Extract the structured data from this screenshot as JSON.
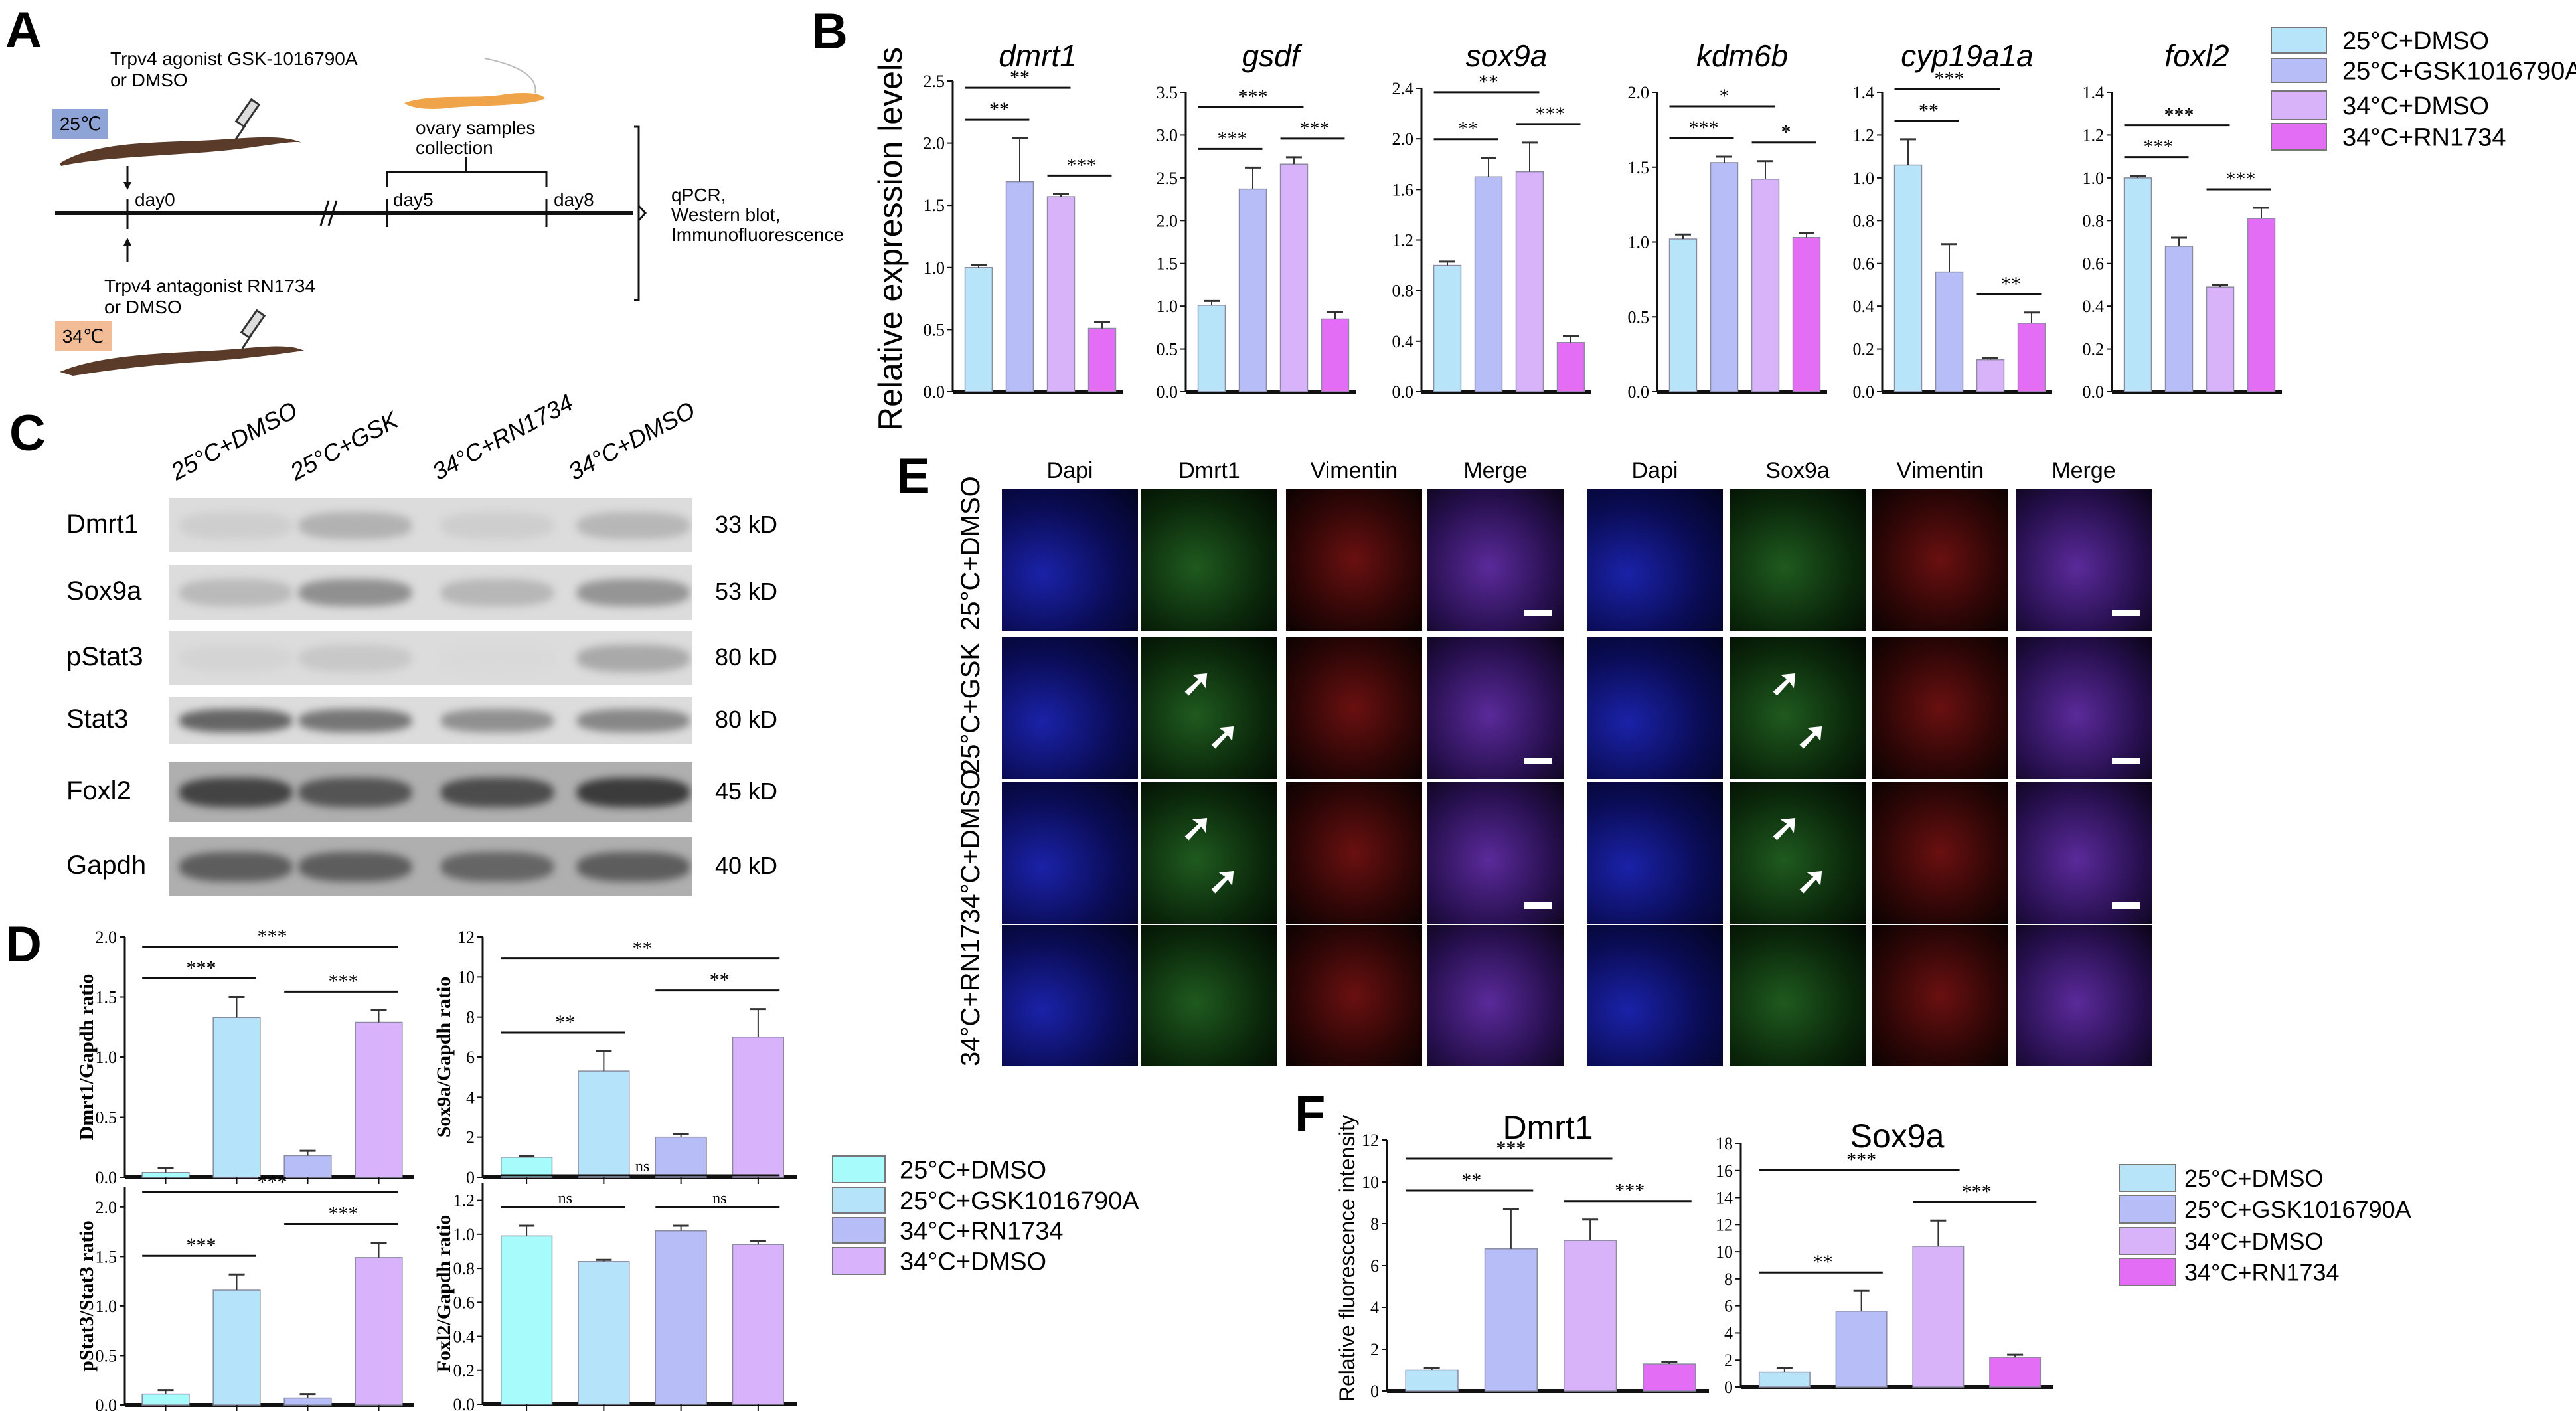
{
  "panels": {
    "a": "A",
    "b": "B",
    "c": "C",
    "d": "D",
    "e": "E",
    "f": "F"
  },
  "panel_a": {
    "agonist_line1": "Trpv4 agonist GSK-1016790A",
    "agonist_line2": "or DMSO",
    "temp_low": "25℃",
    "antagonist_line1": "Trpv4 antagonist RN1734",
    "antagonist_line2": "or DMSO",
    "temp_high": "34℃",
    "day0": "day0",
    "day5": "day5",
    "day8": "day8",
    "collection_line1": "ovary samples",
    "collection_line2": "collection",
    "assay_line1": "qPCR,",
    "assay_line2": "Western blot,",
    "assay_line3": "Immunofluorescence",
    "colors": {
      "low": "#8ea3d6",
      "high": "#f2bc96",
      "eel": "#5a3a28",
      "ovary": "#f0a44a"
    }
  },
  "panel_b": {
    "ylabel": "Relative expression levels",
    "legend": [
      {
        "label": "25°C+DMSO",
        "color": "#b8e4f9"
      },
      {
        "label": "25°C+GSK1016790A",
        "color": "#b6bdf7"
      },
      {
        "label": "34°C+DMSO",
        "color": "#d9b3fa"
      },
      {
        "label": "34°C+RN1734",
        "color": "#e36df5"
      }
    ]
  },
  "panel_c": {
    "lanes": [
      "25°C+DMSO",
      "25°C+GSK",
      "34°C+RN1734",
      "34°C+DMSO"
    ],
    "rows": [
      {
        "protein": "Dmrt1",
        "kd": "33 kD",
        "intensity": [
          0.08,
          0.25,
          0.08,
          0.22
        ]
      },
      {
        "protein": "Sox9a",
        "kd": "53 kD",
        "intensity": [
          0.2,
          0.45,
          0.22,
          0.42
        ]
      },
      {
        "protein": "pStat3",
        "kd": "80 kD",
        "intensity": [
          0.05,
          0.12,
          0.02,
          0.3
        ]
      },
      {
        "protein": "Stat3",
        "kd": "80 kD",
        "intensity": [
          0.7,
          0.6,
          0.45,
          0.5
        ]
      },
      {
        "protein": "Foxl2",
        "kd": "45 kD",
        "intensity": [
          0.9,
          0.8,
          0.85,
          0.95
        ]
      },
      {
        "protein": "Gapdh",
        "kd": "40 kD",
        "intensity": [
          0.75,
          0.75,
          0.7,
          0.75
        ]
      }
    ]
  },
  "panel_d": {
    "legend": [
      {
        "label": "25°C+DMSO",
        "color": "#a8fbfb"
      },
      {
        "label": "25°C+GSK1016790A",
        "color": "#b5e3fa"
      },
      {
        "label": "34°C+RN1734",
        "color": "#b6bdf7"
      },
      {
        "label": "34°C+DMSO",
        "color": "#d8b2fa"
      }
    ]
  },
  "panel_e": {
    "left_columns": [
      "Dapi",
      "Dmrt1",
      "Vimentin",
      "Merge"
    ],
    "right_columns": [
      "Dapi",
      "Sox9a",
      "Vimentin",
      "Merge"
    ],
    "rows": [
      "25°C+DMSO",
      "25°C+GSK",
      "34°C+DMSO",
      "34°C+RN1734"
    ]
  },
  "panel_f": {
    "ylabel": "Relative fluorescence intensity",
    "legend": [
      {
        "label": "25°C+DMSO",
        "color": "#b8e4f9"
      },
      {
        "label": "25°C+GSK1016790A",
        "color": "#b6bdf7"
      },
      {
        "label": "34°C+DMSO",
        "color": "#d9b3fa"
      },
      {
        "label": "34°C+RN1734",
        "color": "#e36df5"
      }
    ]
  },
  "chart_data": [
    {
      "type": "bar",
      "panel": "B",
      "title": "dmrt1",
      "italic": true,
      "ylabel": "Relative expression levels",
      "categories": [
        "25°C+DMSO",
        "25°C+GSK1016790A",
        "34°C+DMSO",
        "34°C+RN1734"
      ],
      "values": [
        1.0,
        1.69,
        1.57,
        0.51
      ],
      "errors": [
        0.02,
        0.35,
        0.02,
        0.05
      ],
      "ylim": [
        0,
        2.5
      ],
      "ticks": [
        0.0,
        0.5,
        1.0,
        1.5,
        2.0,
        2.5
      ],
      "tick_labels": [
        "0.0",
        "0.5",
        "1.0",
        "1.5",
        "2.0",
        "2.5"
      ],
      "colors": [
        "#b8e4f9",
        "#b6bdf7",
        "#d9b3fa",
        "#e36df5"
      ],
      "significance": [
        {
          "from": 0,
          "to": 1,
          "label": "**"
        },
        {
          "from": 2,
          "to": 3,
          "label": "***"
        },
        {
          "from": 0,
          "to": 2,
          "label": "**"
        }
      ]
    },
    {
      "type": "bar",
      "panel": "B",
      "title": "gsdf",
      "italic": true,
      "ylabel": "Relative expression levels",
      "categories": [
        "25°C+DMSO",
        "25°C+GSK1016790A",
        "34°C+DMSO",
        "34°C+RN1734"
      ],
      "values": [
        1.01,
        2.37,
        2.66,
        0.85
      ],
      "errors": [
        0.05,
        0.25,
        0.08,
        0.08
      ],
      "ylim": [
        0,
        3.5
      ],
      "ticks": [
        0.0,
        0.5,
        1.0,
        1.5,
        2.0,
        2.5,
        3.0,
        3.5
      ],
      "tick_labels": [
        "0.0",
        "0.5",
        "1.0",
        "1.5",
        "2.0",
        "2.5",
        "3.0",
        "3.5"
      ],
      "colors": [
        "#b8e4f9",
        "#b6bdf7",
        "#d9b3fa",
        "#e36df5"
      ],
      "significance": [
        {
          "from": 0,
          "to": 1,
          "label": "***"
        },
        {
          "from": 2,
          "to": 3,
          "label": "***"
        },
        {
          "from": 0,
          "to": 2,
          "label": "***"
        }
      ]
    },
    {
      "type": "bar",
      "panel": "B",
      "title": "sox9a",
      "italic": true,
      "ylabel": "Relative expression levels",
      "categories": [
        "25°C+DMSO",
        "25°C+GSK1016790A",
        "34°C+DMSO",
        "34°C+RN1734"
      ],
      "values": [
        1.0,
        1.7,
        1.74,
        0.39
      ],
      "errors": [
        0.03,
        0.15,
        0.23,
        0.05
      ],
      "ylim": [
        0,
        2.4
      ],
      "ticks": [
        0.0,
        0.4,
        0.8,
        1.2,
        1.6,
        2.0,
        2.4
      ],
      "tick_labels": [
        "0.0",
        "0.4",
        "0.8",
        "1.2",
        "1.6",
        "2.0",
        "2.4"
      ],
      "colors": [
        "#b8e4f9",
        "#b6bdf7",
        "#d9b3fa",
        "#e36df5"
      ],
      "significance": [
        {
          "from": 0,
          "to": 1,
          "label": "**"
        },
        {
          "from": 2,
          "to": 3,
          "label": "***"
        },
        {
          "from": 0,
          "to": 2,
          "label": "**"
        }
      ]
    },
    {
      "type": "bar",
      "panel": "B",
      "title": "kdm6b",
      "italic": true,
      "ylabel": "Relative expression levels",
      "categories": [
        "25°C+DMSO",
        "25°C+GSK1016790A",
        "34°C+DMSO",
        "34°C+RN1734"
      ],
      "values": [
        1.02,
        1.53,
        1.42,
        1.03
      ],
      "errors": [
        0.03,
        0.04,
        0.12,
        0.03
      ],
      "ylim": [
        0,
        2.0
      ],
      "ticks": [
        0.0,
        0.5,
        1.0,
        1.5,
        2.0
      ],
      "tick_labels": [
        "0.0",
        "0.5",
        "1.0",
        "1.5",
        "2.0"
      ],
      "colors": [
        "#b8e4f9",
        "#b6bdf7",
        "#d9b3fa",
        "#e36df5"
      ],
      "significance": [
        {
          "from": 0,
          "to": 1,
          "label": "***"
        },
        {
          "from": 2,
          "to": 3,
          "label": "*"
        },
        {
          "from": 0,
          "to": 2,
          "label": "*"
        }
      ]
    },
    {
      "type": "bar",
      "panel": "B",
      "title": "cyp19a1a",
      "italic": true,
      "ylabel": "Relative expression levels",
      "categories": [
        "25°C+DMSO",
        "25°C+GSK1016790A",
        "34°C+DMSO",
        "34°C+RN1734"
      ],
      "values": [
        1.06,
        0.56,
        0.15,
        0.32
      ],
      "errors": [
        0.12,
        0.13,
        0.01,
        0.05
      ],
      "ylim": [
        0,
        1.4
      ],
      "ticks": [
        0.0,
        0.2,
        0.4,
        0.6,
        0.8,
        1.0,
        1.2,
        1.4
      ],
      "tick_labels": [
        "0.0",
        "0.2",
        "0.4",
        "0.6",
        "0.8",
        "1.0",
        "1.2",
        "1.4"
      ],
      "colors": [
        "#b8e4f9",
        "#b6bdf7",
        "#d9b3fa",
        "#e36df5"
      ],
      "significance": [
        {
          "from": 0,
          "to": 1,
          "label": "**"
        },
        {
          "from": 2,
          "to": 3,
          "label": "**"
        },
        {
          "from": 0,
          "to": 2,
          "label": "***"
        }
      ]
    },
    {
      "type": "bar",
      "panel": "B",
      "title": "foxl2",
      "italic": true,
      "ylabel": "Relative expression levels",
      "categories": [
        "25°C+DMSO",
        "25°C+GSK1016790A",
        "34°C+DMSO",
        "34°C+RN1734"
      ],
      "values": [
        1.0,
        0.68,
        0.49,
        0.81
      ],
      "errors": [
        0.01,
        0.04,
        0.01,
        0.05
      ],
      "ylim": [
        0,
        1.4
      ],
      "ticks": [
        0.0,
        0.2,
        0.4,
        0.6,
        0.8,
        1.0,
        1.2,
        1.4
      ],
      "tick_labels": [
        "0.0",
        "0.2",
        "0.4",
        "0.6",
        "0.8",
        "1.0",
        "1.2",
        "1.4"
      ],
      "colors": [
        "#b8e4f9",
        "#b6bdf7",
        "#d9b3fa",
        "#e36df5"
      ],
      "significance": [
        {
          "from": 0,
          "to": 1,
          "label": "***"
        },
        {
          "from": 2,
          "to": 3,
          "label": "***"
        },
        {
          "from": 0,
          "to": 2,
          "label": "***"
        }
      ]
    },
    {
      "type": "bar",
      "panel": "D",
      "title": "",
      "ylabel": "Dmrt1/Gapdh ratio",
      "categories": [
        "25°C+DMSO",
        "25°C+GSK1016790A",
        "34°C+RN1734",
        "34°C+DMSO"
      ],
      "values": [
        0.04,
        1.33,
        0.18,
        1.29
      ],
      "errors": [
        0.04,
        0.17,
        0.04,
        0.1
      ],
      "ylim": [
        0,
        2.0
      ],
      "ticks": [
        0.0,
        0.5,
        1.0,
        1.5,
        2.0
      ],
      "tick_labels": [
        "0.0",
        "0.5",
        "1.0",
        "1.5",
        "2.0"
      ],
      "colors": [
        "#a8fbfb",
        "#b5e3fa",
        "#b6bdf7",
        "#d8b2fa"
      ],
      "significance": [
        {
          "from": 0,
          "to": 1,
          "label": "***"
        },
        {
          "from": 2,
          "to": 3,
          "label": "***"
        },
        {
          "from": 0,
          "to": 3,
          "label": "***"
        }
      ]
    },
    {
      "type": "bar",
      "panel": "D",
      "title": "",
      "ylabel": "Sox9a/Gapdh ratio",
      "categories": [
        "25°C+DMSO",
        "25°C+GSK1016790A",
        "34°C+RN1734",
        "34°C+DMSO"
      ],
      "values": [
        1.0,
        5.3,
        2.0,
        7.0
      ],
      "errors": [
        0.05,
        1.0,
        0.15,
        1.4
      ],
      "ylim": [
        0,
        12
      ],
      "ticks": [
        0,
        2,
        4,
        6,
        8,
        10,
        12
      ],
      "tick_labels": [
        "0",
        "2",
        "4",
        "6",
        "8",
        "10",
        "12"
      ],
      "colors": [
        "#a8fbfb",
        "#b5e3fa",
        "#b6bdf7",
        "#d8b2fa"
      ],
      "significance": [
        {
          "from": 0,
          "to": 1,
          "label": "**"
        },
        {
          "from": 2,
          "to": 3,
          "label": "**"
        },
        {
          "from": 0,
          "to": 3,
          "label": "**"
        }
      ]
    },
    {
      "type": "bar",
      "panel": "D",
      "title": "",
      "ylabel": "pStat3/Stat3 ratio",
      "categories": [
        "25°C+DMSO",
        "25°C+GSK1016790A",
        "34°C+RN1734",
        "34°C+DMSO"
      ],
      "values": [
        0.11,
        1.16,
        0.07,
        1.49
      ],
      "errors": [
        0.04,
        0.16,
        0.04,
        0.15
      ],
      "ylim": [
        0,
        2.2
      ],
      "ticks": [
        0.0,
        0.5,
        1.0,
        1.5,
        2.0
      ],
      "tick_labels": [
        "0.0",
        "0.5",
        "1.0",
        "1.5",
        "2.0"
      ],
      "colors": [
        "#a8fbfb",
        "#b5e3fa",
        "#b6bdf7",
        "#d8b2fa"
      ],
      "significance": [
        {
          "from": 0,
          "to": 1,
          "label": "***"
        },
        {
          "from": 2,
          "to": 3,
          "label": "***"
        },
        {
          "from": 0,
          "to": 3,
          "label": "***"
        }
      ]
    },
    {
      "type": "bar",
      "panel": "D",
      "title": "",
      "ylabel": "Foxl2/Gapdh ratio",
      "categories": [
        "25°C+DMSO",
        "25°C+GSK1016790A",
        "34°C+RN1734",
        "34°C+DMSO"
      ],
      "values": [
        0.99,
        0.84,
        1.02,
        0.94
      ],
      "errors": [
        0.06,
        0.01,
        0.03,
        0.02
      ],
      "ylim": [
        0,
        1.3
      ],
      "ticks": [
        0.0,
        0.2,
        0.4,
        0.6,
        0.8,
        1.0,
        1.2
      ],
      "tick_labels": [
        "0.0",
        "0.2",
        "0.4",
        "0.6",
        "0.8",
        "1.0",
        "1.2"
      ],
      "colors": [
        "#a8fbfb",
        "#b5e3fa",
        "#b6bdf7",
        "#d8b2fa"
      ],
      "significance": [
        {
          "from": 0,
          "to": 1,
          "label": "ns"
        },
        {
          "from": 2,
          "to": 3,
          "label": "ns"
        },
        {
          "from": 0,
          "to": 3,
          "label": "ns"
        }
      ]
    },
    {
      "type": "bar",
      "panel": "F",
      "title": "Dmrt1",
      "italic": false,
      "ylabel": "Relative fluorescence intensity",
      "categories": [
        "25°C+DMSO",
        "25°C+GSK1016790A",
        "34°C+DMSO",
        "34°C+RN1734"
      ],
      "values": [
        1.0,
        6.8,
        7.2,
        1.3
      ],
      "errors": [
        0.1,
        1.9,
        1.0,
        0.1
      ],
      "ylim": [
        0,
        12
      ],
      "ticks": [
        0,
        2,
        4,
        6,
        8,
        10,
        12
      ],
      "tick_labels": [
        "0",
        "2",
        "4",
        "6",
        "8",
        "10",
        "12"
      ],
      "colors": [
        "#b8e4f9",
        "#b6bdf7",
        "#d9b3fa",
        "#e36df5"
      ],
      "significance": [
        {
          "from": 0,
          "to": 1,
          "label": "**"
        },
        {
          "from": 2,
          "to": 3,
          "label": "***"
        },
        {
          "from": 0,
          "to": 2,
          "label": "***"
        }
      ]
    },
    {
      "type": "bar",
      "panel": "F",
      "title": "Sox9a",
      "italic": false,
      "ylabel": "Relative fluorescence intensity",
      "categories": [
        "25°C+DMSO",
        "25°C+GSK1016790A",
        "34°C+DMSO",
        "34°C+RN1734"
      ],
      "values": [
        1.1,
        5.6,
        10.4,
        2.2
      ],
      "errors": [
        0.3,
        1.5,
        1.9,
        0.2
      ],
      "ylim": [
        0,
        18
      ],
      "ticks": [
        0,
        2,
        4,
        6,
        8,
        10,
        12,
        14,
        16,
        18
      ],
      "tick_labels": [
        "0",
        "2",
        "4",
        "6",
        "8",
        "10",
        "12",
        "14",
        "16",
        "18"
      ],
      "colors": [
        "#b8e4f9",
        "#b6bdf7",
        "#d9b3fa",
        "#e36df5"
      ],
      "significance": [
        {
          "from": 0,
          "to": 1,
          "label": "**"
        },
        {
          "from": 2,
          "to": 3,
          "label": "***"
        },
        {
          "from": 0,
          "to": 2,
          "label": "***"
        }
      ]
    }
  ]
}
